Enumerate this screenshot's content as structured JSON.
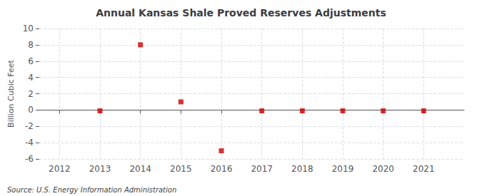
{
  "chart_data": {
    "type": "scatter",
    "title": "Annual Kansas Shale Proved Reserves Adjustments",
    "ylabel": "Billion Cubic Feet",
    "annotations": [
      "Source: U.S. Energy Information Administration"
    ],
    "x": [
      2012,
      2013,
      2014,
      2015,
      2016,
      2017,
      2018,
      2019,
      2020,
      2021
    ],
    "values": [
      null,
      -0.1,
      8.0,
      1.0,
      -5.0,
      -0.1,
      -0.1,
      -0.1,
      -0.1,
      -0.1
    ],
    "color": "#cc0000",
    "marker": "square",
    "xlim": [
      2011.5,
      2022.0
    ],
    "xticks": [
      2012,
      2013,
      2014,
      2015,
      2016,
      2017,
      2018,
      2019,
      2020,
      2021
    ],
    "ylim": [
      -6,
      10
    ],
    "yticks": [
      -6,
      -4,
      -2,
      0,
      2,
      4,
      6,
      8,
      10
    ],
    "grid": true
  }
}
